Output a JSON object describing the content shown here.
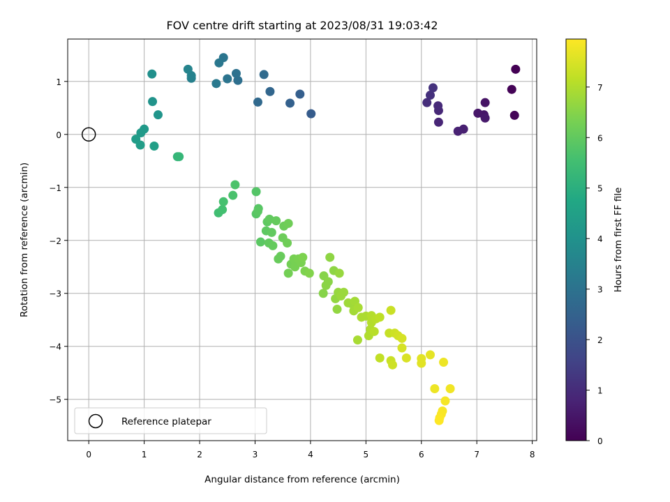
{
  "chart_data": {
    "type": "scatter",
    "title": "FOV centre drift starting at 2023/08/31 19:03:42",
    "xlabel": "Angular distance from reference (arcmin)",
    "ylabel": "Rotation from reference (arcmin)",
    "xlim": [
      -0.38,
      8.08
    ],
    "ylim": [
      -5.78,
      1.8
    ],
    "xticks": [
      0,
      1,
      2,
      3,
      4,
      5,
      6,
      7,
      8
    ],
    "yticks": [
      1,
      0,
      -1,
      -2,
      -3,
      -4,
      -5
    ],
    "xtick_labels": [
      "0",
      "1",
      "2",
      "3",
      "4",
      "5",
      "6",
      "7",
      "8"
    ],
    "ytick_labels": [
      "1",
      "0",
      "−1",
      "−2",
      "−3",
      "−4",
      "−5"
    ],
    "grid": true,
    "colorbar": {
      "label": "Hours from first FF file",
      "range": [
        0,
        7.95
      ],
      "ticks": [
        0,
        1,
        2,
        3,
        4,
        5,
        6,
        7
      ],
      "tick_labels": [
        "0",
        "1",
        "2",
        "3",
        "4",
        "5",
        "6",
        "7"
      ],
      "colormap": "viridis"
    },
    "legend": {
      "entries": [
        "Reference platepar"
      ],
      "placement": "lower-left"
    },
    "reference_point": {
      "x": 0,
      "y": 0
    },
    "points": [
      {
        "x": 7.7,
        "y": 1.23,
        "h": 0.0
      },
      {
        "x": 7.63,
        "y": 0.85,
        "h": 0.05
      },
      {
        "x": 7.68,
        "y": 0.36,
        "h": 0.1
      },
      {
        "x": 7.15,
        "y": 0.6,
        "h": 0.4
      },
      {
        "x": 7.13,
        "y": 0.37,
        "h": 0.45
      },
      {
        "x": 7.02,
        "y": 0.4,
        "h": 0.5
      },
      {
        "x": 7.15,
        "y": 0.31,
        "h": 0.55
      },
      {
        "x": 6.76,
        "y": 0.1,
        "h": 0.7
      },
      {
        "x": 6.66,
        "y": 0.06,
        "h": 0.75
      },
      {
        "x": 6.31,
        "y": 0.23,
        "h": 0.85
      },
      {
        "x": 6.31,
        "y": 0.45,
        "h": 0.9
      },
      {
        "x": 6.3,
        "y": 0.54,
        "h": 0.95
      },
      {
        "x": 6.1,
        "y": 0.6,
        "h": 1.05
      },
      {
        "x": 6.16,
        "y": 0.74,
        "h": 1.1
      },
      {
        "x": 6.21,
        "y": 0.88,
        "h": 1.15
      },
      {
        "x": 4.01,
        "y": 0.39,
        "h": 2.3
      },
      {
        "x": 3.81,
        "y": 0.76,
        "h": 2.4
      },
      {
        "x": 3.63,
        "y": 0.59,
        "h": 2.45
      },
      {
        "x": 3.27,
        "y": 0.81,
        "h": 2.6
      },
      {
        "x": 3.05,
        "y": 0.61,
        "h": 2.7
      },
      {
        "x": 3.16,
        "y": 1.13,
        "h": 2.75
      },
      {
        "x": 2.69,
        "y": 1.02,
        "h": 2.9
      },
      {
        "x": 2.66,
        "y": 1.15,
        "h": 2.95
      },
      {
        "x": 2.5,
        "y": 1.05,
        "h": 3.05
      },
      {
        "x": 2.43,
        "y": 1.45,
        "h": 3.1
      },
      {
        "x": 2.35,
        "y": 1.35,
        "h": 3.15
      },
      {
        "x": 2.3,
        "y": 0.96,
        "h": 3.2
      },
      {
        "x": 1.85,
        "y": 1.06,
        "h": 3.45
      },
      {
        "x": 1.85,
        "y": 1.11,
        "h": 3.5
      },
      {
        "x": 1.79,
        "y": 1.23,
        "h": 3.55
      },
      {
        "x": 1.14,
        "y": 1.14,
        "h": 3.95
      },
      {
        "x": 1.15,
        "y": 0.62,
        "h": 4.05
      },
      {
        "x": 1.25,
        "y": 0.37,
        "h": 4.1
      },
      {
        "x": 1.0,
        "y": 0.1,
        "h": 4.25
      },
      {
        "x": 0.94,
        "y": 0.03,
        "h": 4.3
      },
      {
        "x": 0.85,
        "y": -0.09,
        "h": 4.35
      },
      {
        "x": 0.93,
        "y": -0.2,
        "h": 4.4
      },
      {
        "x": 1.18,
        "y": -0.22,
        "h": 4.45
      },
      {
        "x": 1.6,
        "y": -0.42,
        "h": 5.2
      },
      {
        "x": 1.63,
        "y": -0.42,
        "h": 5.25
      },
      {
        "x": 2.34,
        "y": -1.48,
        "h": 5.5
      },
      {
        "x": 2.41,
        "y": -1.42,
        "h": 5.55
      },
      {
        "x": 2.43,
        "y": -1.27,
        "h": 5.6
      },
      {
        "x": 2.6,
        "y": -1.15,
        "h": 5.65
      },
      {
        "x": 2.64,
        "y": -0.95,
        "h": 5.7
      },
      {
        "x": 3.02,
        "y": -1.08,
        "h": 5.8
      },
      {
        "x": 3.02,
        "y": -1.5,
        "h": 5.85
      },
      {
        "x": 3.06,
        "y": -1.4,
        "h": 5.85
      },
      {
        "x": 3.05,
        "y": -1.45,
        "h": 5.9
      },
      {
        "x": 3.1,
        "y": -2.03,
        "h": 5.9
      },
      {
        "x": 3.2,
        "y": -1.82,
        "h": 5.95
      },
      {
        "x": 3.22,
        "y": -1.65,
        "h": 5.95
      },
      {
        "x": 3.26,
        "y": -1.6,
        "h": 6.0
      },
      {
        "x": 3.25,
        "y": -2.05,
        "h": 6.0
      },
      {
        "x": 3.3,
        "y": -1.85,
        "h": 6.0
      },
      {
        "x": 3.32,
        "y": -2.1,
        "h": 6.05
      },
      {
        "x": 3.38,
        "y": -1.63,
        "h": 6.05
      },
      {
        "x": 3.42,
        "y": -2.35,
        "h": 6.1
      },
      {
        "x": 3.46,
        "y": -2.3,
        "h": 6.1
      },
      {
        "x": 3.5,
        "y": -1.95,
        "h": 6.15
      },
      {
        "x": 3.52,
        "y": -1.73,
        "h": 6.15
      },
      {
        "x": 3.58,
        "y": -2.05,
        "h": 6.2
      },
      {
        "x": 3.6,
        "y": -1.68,
        "h": 6.2
      },
      {
        "x": 3.6,
        "y": -2.62,
        "h": 6.25
      },
      {
        "x": 3.65,
        "y": -2.45,
        "h": 6.25
      },
      {
        "x": 3.7,
        "y": -2.35,
        "h": 6.3
      },
      {
        "x": 3.72,
        "y": -2.5,
        "h": 6.3
      },
      {
        "x": 3.78,
        "y": -2.35,
        "h": 6.35
      },
      {
        "x": 3.83,
        "y": -2.42,
        "h": 6.35
      },
      {
        "x": 3.86,
        "y": -2.32,
        "h": 6.4
      },
      {
        "x": 3.9,
        "y": -2.58,
        "h": 6.4
      },
      {
        "x": 3.98,
        "y": -2.62,
        "h": 6.45
      },
      {
        "x": 4.23,
        "y": -3.0,
        "h": 6.5
      },
      {
        "x": 4.24,
        "y": -2.67,
        "h": 6.5
      },
      {
        "x": 4.28,
        "y": -2.85,
        "h": 6.55
      },
      {
        "x": 4.32,
        "y": -2.78,
        "h": 6.55
      },
      {
        "x": 4.35,
        "y": -2.32,
        "h": 6.6
      },
      {
        "x": 4.42,
        "y": -2.57,
        "h": 6.6
      },
      {
        "x": 4.45,
        "y": -3.1,
        "h": 6.65
      },
      {
        "x": 4.48,
        "y": -3.3,
        "h": 6.65
      },
      {
        "x": 4.52,
        "y": -2.62,
        "h": 6.7
      },
      {
        "x": 4.5,
        "y": -2.98,
        "h": 6.7
      },
      {
        "x": 4.55,
        "y": -3.05,
        "h": 6.75
      },
      {
        "x": 4.6,
        "y": -2.98,
        "h": 6.75
      },
      {
        "x": 4.68,
        "y": -3.18,
        "h": 6.8
      },
      {
        "x": 4.75,
        "y": -3.2,
        "h": 6.8
      },
      {
        "x": 4.78,
        "y": -3.33,
        "h": 6.85
      },
      {
        "x": 4.8,
        "y": -3.15,
        "h": 6.85
      },
      {
        "x": 4.86,
        "y": -3.27,
        "h": 6.9
      },
      {
        "x": 4.85,
        "y": -3.88,
        "h": 6.9
      },
      {
        "x": 4.92,
        "y": -3.45,
        "h": 6.95
      },
      {
        "x": 5.0,
        "y": -3.43,
        "h": 6.95
      },
      {
        "x": 5.05,
        "y": -3.8,
        "h": 7.0
      },
      {
        "x": 5.08,
        "y": -3.68,
        "h": 7.0
      },
      {
        "x": 5.1,
        "y": -3.55,
        "h": 7.05
      },
      {
        "x": 5.1,
        "y": -3.42,
        "h": 7.05
      },
      {
        "x": 5.15,
        "y": -3.72,
        "h": 7.1
      },
      {
        "x": 5.18,
        "y": -3.48,
        "h": 7.1
      },
      {
        "x": 5.25,
        "y": -3.45,
        "h": 7.15
      },
      {
        "x": 5.25,
        "y": -4.22,
        "h": 7.2
      },
      {
        "x": 5.42,
        "y": -3.75,
        "h": 7.25
      },
      {
        "x": 5.45,
        "y": -3.32,
        "h": 7.3
      },
      {
        "x": 5.45,
        "y": -4.27,
        "h": 7.3
      },
      {
        "x": 5.48,
        "y": -4.35,
        "h": 7.35
      },
      {
        "x": 5.52,
        "y": -3.75,
        "h": 7.35
      },
      {
        "x": 5.58,
        "y": -3.8,
        "h": 7.4
      },
      {
        "x": 5.65,
        "y": -3.85,
        "h": 7.45
      },
      {
        "x": 5.65,
        "y": -4.03,
        "h": 7.45
      },
      {
        "x": 5.73,
        "y": -4.22,
        "h": 7.5
      },
      {
        "x": 6.0,
        "y": -4.23,
        "h": 7.6
      },
      {
        "x": 6.0,
        "y": -4.32,
        "h": 7.6
      },
      {
        "x": 6.16,
        "y": -4.16,
        "h": 7.65
      },
      {
        "x": 6.24,
        "y": -4.8,
        "h": 7.75
      },
      {
        "x": 6.4,
        "y": -4.3,
        "h": 7.75
      },
      {
        "x": 6.52,
        "y": -4.8,
        "h": 7.8
      },
      {
        "x": 6.43,
        "y": -5.03,
        "h": 7.85
      },
      {
        "x": 6.38,
        "y": -5.22,
        "h": 7.88
      },
      {
        "x": 6.36,
        "y": -5.28,
        "h": 7.9
      },
      {
        "x": 6.33,
        "y": -5.35,
        "h": 7.92
      },
      {
        "x": 6.32,
        "y": -5.4,
        "h": 7.95
      }
    ]
  }
}
